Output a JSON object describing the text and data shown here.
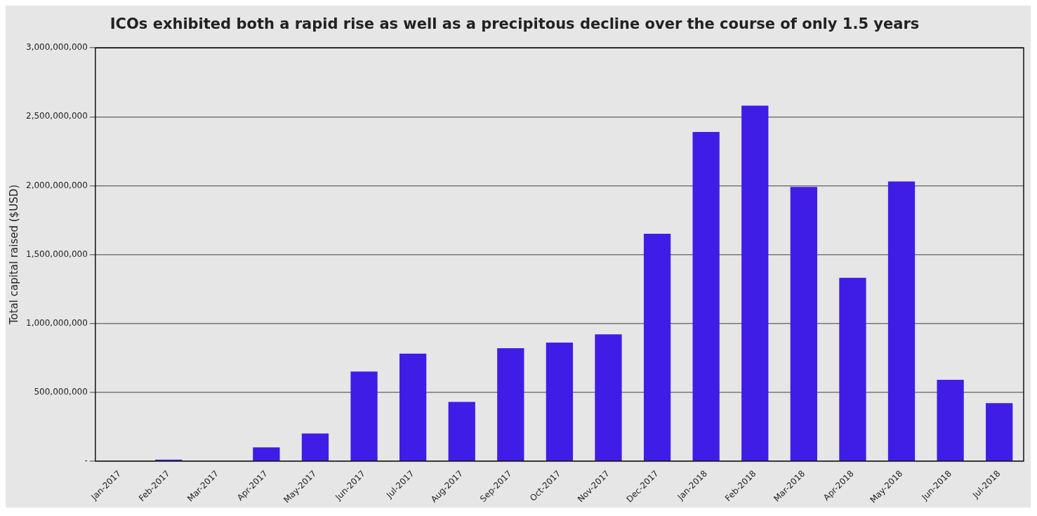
{
  "chart_data": {
    "type": "bar",
    "title": "ICOs exhibited both a rapid rise as well as a precipitous decline over the course of only 1.5 years",
    "ylabel": "Total capital raised ($USD)",
    "categories": [
      "Jan-2017",
      "Feb-2017",
      "Mar-2017",
      "Apr-2017",
      "May-2017",
      "Jun-2017",
      "Jul-2017",
      "Aug-2017",
      "Sep-2017",
      "Oct-2017",
      "Nov-2017",
      "Dec-2017",
      "Jan-2018",
      "Feb-2018",
      "Mar-2018",
      "Apr-2018",
      "May-2018",
      "Jun-2018",
      "Jul-2018"
    ],
    "values": [
      0,
      10000000,
      0,
      100000000,
      200000000,
      650000000,
      780000000,
      430000000,
      820000000,
      860000000,
      920000000,
      1650000000,
      2390000000,
      2580000000,
      1990000000,
      1330000000,
      2030000000,
      590000000,
      420000000
    ],
    "color": "#3f1de6",
    "ylim": [
      0,
      3000000000
    ],
    "yticks": [
      {
        "value": 0,
        "label": "-"
      },
      {
        "value": 500000000,
        "label": "500,000,000"
      },
      {
        "value": 1000000000,
        "label": "1,000,000,000"
      },
      {
        "value": 1500000000,
        "label": "1,500,000,000"
      },
      {
        "value": 2000000000,
        "label": "2,000,000,000"
      },
      {
        "value": 2500000000,
        "label": "2,500,000,000"
      },
      {
        "value": 3000000000,
        "label": "3,000,000,000"
      }
    ],
    "grid": "y",
    "legend": false
  }
}
